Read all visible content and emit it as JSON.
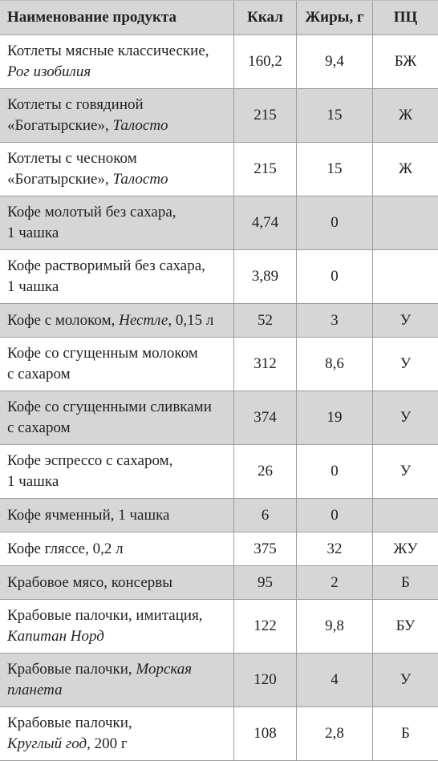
{
  "header": {
    "name": "Наименование продукта",
    "kcal": "Ккал",
    "fat": "Жиры, г",
    "pc": "ПЦ"
  },
  "rows": [
    {
      "line1": "Котлеты мясные классические,",
      "line2_plain": "",
      "line2_brand": "Рог изобилия",
      "line2_tail": "",
      "kcal": "160,2",
      "fat": "9,4",
      "pc": "БЖ"
    },
    {
      "line1": "Котлеты с говядиной",
      "line2_plain": "«Богатырские», ",
      "line2_brand": "Талосто",
      "line2_tail": "",
      "kcal": "215",
      "fat": "15",
      "pc": "Ж"
    },
    {
      "line1": "Котлеты с чесноком",
      "line2_plain": "«Богатырские», ",
      "line2_brand": "Талосто",
      "line2_tail": "",
      "kcal": "215",
      "fat": "15",
      "pc": "Ж"
    },
    {
      "line1": "Кофе молотый без сахара,",
      "line2_plain": "1 чашка",
      "line2_brand": "",
      "line2_tail": "",
      "kcal": "4,74",
      "fat": "0",
      "pc": ""
    },
    {
      "line1": "Кофе растворимый без сахара,",
      "line2_plain": "1 чашка",
      "line2_brand": "",
      "line2_tail": "",
      "kcal": "3,89",
      "fat": "0",
      "pc": ""
    },
    {
      "line1_plain": "Кофе с молоком, ",
      "line1_brand": "Нестле",
      "line1_tail": ", 0,15 л",
      "kcal": "52",
      "fat": "3",
      "pc": "У"
    },
    {
      "line1": "Кофе со сгущенным молоком",
      "line2_plain": "с сахаром",
      "line2_brand": "",
      "line2_tail": "",
      "kcal": "312",
      "fat": "8,6",
      "pc": "У"
    },
    {
      "line1": "Кофе со сгущенными сливками",
      "line2_plain": "с сахаром",
      "line2_brand": "",
      "line2_tail": "",
      "kcal": "374",
      "fat": "19",
      "pc": "У"
    },
    {
      "line1": "Кофе эспрессо с сахаром,",
      "line2_plain": "1 чашка",
      "line2_brand": "",
      "line2_tail": "",
      "kcal": "26",
      "fat": "0",
      "pc": "У"
    },
    {
      "line1_plain": "Кофе ячменный, 1 чашка",
      "line1_brand": "",
      "line1_tail": "",
      "kcal": "6",
      "fat": "0",
      "pc": ""
    },
    {
      "line1_plain": "Кофе глясcе, 0,2 л",
      "line1_brand": "",
      "line1_tail": "",
      "kcal": "375",
      "fat": "32",
      "pc": "ЖУ"
    },
    {
      "line1_plain": "Крабовое мясо, консервы",
      "line1_brand": "",
      "line1_tail": "",
      "kcal": "95",
      "fat": "2",
      "pc": "Б"
    },
    {
      "line1": "Крабовые палочки, имитация,",
      "line2_plain": "",
      "line2_brand": "Капитан Норд",
      "line2_tail": "",
      "kcal": "122",
      "fat": "9,8",
      "pc": "БУ"
    },
    {
      "line1_plain": "Крабовые палочки, ",
      "line1_brand": "Морская",
      "line1_tail": "",
      "line2_plain": "",
      "line2_brand": "планета",
      "line2_tail": "",
      "kcal": "120",
      "fat": "4",
      "pc": "У"
    },
    {
      "line1": "Крабовые палочки,",
      "line2_plain": "",
      "line2_brand": "Круглый год,",
      "line2_tail": " 200 г",
      "kcal": "108",
      "fat": "2,8",
      "pc": "Б"
    }
  ]
}
